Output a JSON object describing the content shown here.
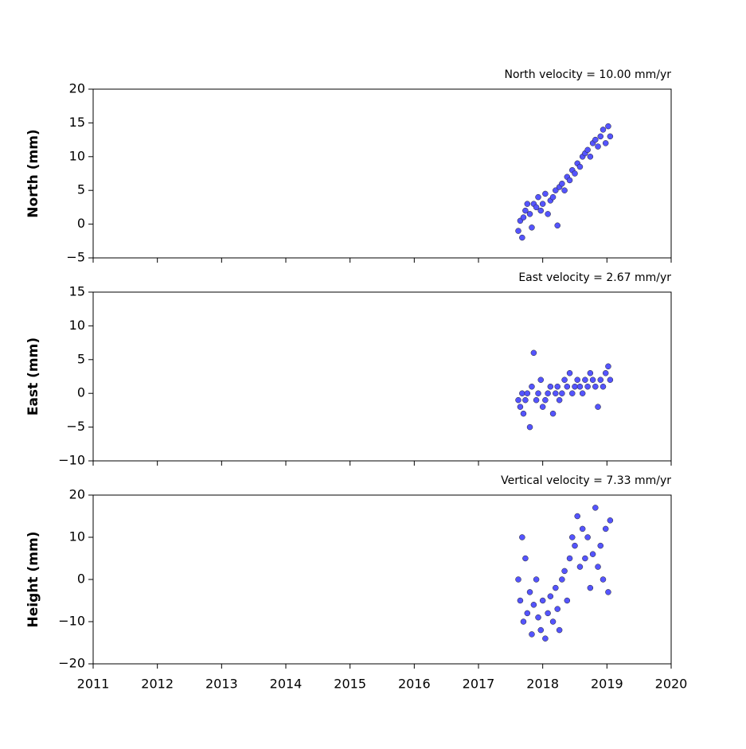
{
  "chart_data": [
    {
      "type": "scatter",
      "title": "North velocity = 10.00 mm/yr",
      "ylabel": "North (mm)",
      "color": "#5454ff",
      "x": [
        2017.62,
        2017.65,
        2017.68,
        2017.7,
        2017.73,
        2017.76,
        2017.8,
        2017.83,
        2017.86,
        2017.9,
        2017.93,
        2017.97,
        2018.0,
        2018.04,
        2018.08,
        2018.12,
        2018.16,
        2018.2,
        2018.23,
        2018.26,
        2018.3,
        2018.34,
        2018.38,
        2018.42,
        2018.46,
        2018.5,
        2018.54,
        2018.58,
        2018.62,
        2018.66,
        2018.7,
        2018.74,
        2018.78,
        2018.82,
        2018.86,
        2018.9,
        2018.94,
        2018.98,
        2019.02,
        2019.05
      ],
      "values": [
        -1,
        0.5,
        -2,
        1,
        2,
        3,
        1.5,
        -0.5,
        3,
        2.5,
        4,
        2,
        3,
        4.5,
        1.5,
        3.5,
        4,
        5,
        -0.2,
        5.5,
        6,
        5,
        7,
        6.5,
        8,
        7.5,
        9,
        8.5,
        10,
        10.5,
        11,
        10,
        12,
        12.5,
        11.5,
        13,
        14,
        12,
        14.5,
        13
      ],
      "xlim": [
        2011,
        2020
      ],
      "xticks": [
        2011,
        2012,
        2013,
        2014,
        2015,
        2016,
        2017,
        2018,
        2019,
        2020
      ],
      "ylim": [
        -5,
        20
      ],
      "yticks": [
        {
          "value": -5,
          "label": "−5"
        },
        0,
        5,
        10,
        15,
        20
      ]
    },
    {
      "type": "scatter",
      "title": "East velocity = 2.67 mm/yr",
      "ylabel": "East (mm)",
      "color": "#5454ff",
      "x": [
        2017.62,
        2017.65,
        2017.68,
        2017.7,
        2017.73,
        2017.76,
        2017.8,
        2017.83,
        2017.86,
        2017.9,
        2017.93,
        2017.97,
        2018.0,
        2018.04,
        2018.08,
        2018.12,
        2018.16,
        2018.2,
        2018.23,
        2018.26,
        2018.3,
        2018.34,
        2018.38,
        2018.42,
        2018.46,
        2018.5,
        2018.54,
        2018.58,
        2018.62,
        2018.66,
        2018.7,
        2018.74,
        2018.78,
        2018.82,
        2018.86,
        2018.9,
        2018.94,
        2018.98,
        2019.02,
        2019.05
      ],
      "values": [
        -1,
        -2,
        0,
        -3,
        -1,
        0,
        -5,
        1,
        6,
        -1,
        0,
        2,
        -2,
        -1,
        0,
        1,
        -3,
        0,
        1,
        -1,
        0,
        2,
        1,
        3,
        0,
        1,
        2,
        1,
        0,
        2,
        1,
        3,
        2,
        1,
        -2,
        2,
        1,
        3,
        4,
        2
      ],
      "xlim": [
        2011,
        2020
      ],
      "xticks": [
        2011,
        2012,
        2013,
        2014,
        2015,
        2016,
        2017,
        2018,
        2019,
        2020
      ],
      "ylim": [
        -10,
        15
      ],
      "yticks": [
        {
          "value": -10,
          "label": "−10"
        },
        {
          "value": -5,
          "label": "−5"
        },
        0,
        5,
        10,
        15
      ]
    },
    {
      "type": "scatter",
      "title": "Vertical velocity = 7.33 mm/yr",
      "ylabel": "Height (mm)",
      "color": "#5454ff",
      "x": [
        2017.62,
        2017.65,
        2017.68,
        2017.7,
        2017.73,
        2017.76,
        2017.8,
        2017.83,
        2017.86,
        2017.9,
        2017.93,
        2017.97,
        2018.0,
        2018.04,
        2018.08,
        2018.12,
        2018.16,
        2018.2,
        2018.23,
        2018.26,
        2018.3,
        2018.34,
        2018.38,
        2018.42,
        2018.46,
        2018.5,
        2018.54,
        2018.58,
        2018.62,
        2018.66,
        2018.7,
        2018.74,
        2018.78,
        2018.82,
        2018.86,
        2018.9,
        2018.94,
        2018.98,
        2019.02,
        2019.05
      ],
      "values": [
        0,
        -5,
        10,
        -10,
        5,
        -8,
        -3,
        -13,
        -6,
        0,
        -9,
        -12,
        -5,
        -14,
        -8,
        -4,
        -10,
        -2,
        -7,
        -12,
        0,
        2,
        -5,
        5,
        10,
        8,
        15,
        3,
        12,
        5,
        10,
        -2,
        6,
        17,
        3,
        8,
        0,
        12,
        -3,
        14
      ],
      "xlim": [
        2011,
        2020
      ],
      "xticks": [
        2011,
        2012,
        2013,
        2014,
        2015,
        2016,
        2017,
        2018,
        2019,
        2020
      ],
      "ylim": [
        -20,
        20
      ],
      "yticks": [
        {
          "value": -20,
          "label": "−20"
        },
        {
          "value": -10,
          "label": "−10"
        },
        0,
        10,
        20
      ]
    }
  ]
}
